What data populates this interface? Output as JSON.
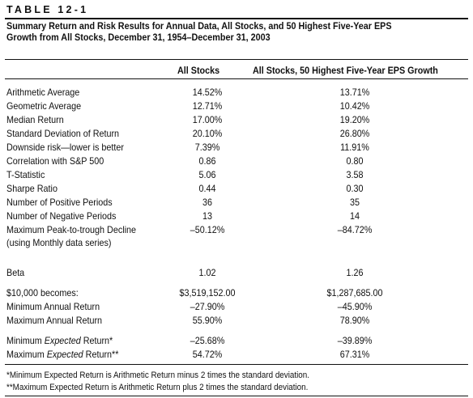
{
  "table_label": "TABLE 12-1",
  "title": {
    "line1": "Summary Return and Risk Results for Annual Data, All Stocks, and 50 Highest Five-Year EPS",
    "line2": "Growth from All Stocks, December 31, 1954–December 31, 2003"
  },
  "columns": {
    "col1": "All Stocks",
    "col2": "All Stocks, 50 Highest Five-Year EPS Growth"
  },
  "rows_main": [
    {
      "label": "Arithmetic Average",
      "v1": "14.52%",
      "v2": "13.71%"
    },
    {
      "label": "Geometric Average",
      "v1": "12.71%",
      "v2": "10.42%"
    },
    {
      "label": "Median Return",
      "v1": "17.00%",
      "v2": "19.20%"
    },
    {
      "label": "Standard Deviation of Return",
      "v1": "20.10%",
      "v2": "26.80%"
    },
    {
      "label": "Downside risk—lower is better",
      "v1": "7.39%",
      "v2": "11.91%"
    },
    {
      "label": "Correlation with S&P 500",
      "v1": "0.86",
      "v2": "0.80"
    },
    {
      "label": "T-Statistic",
      "v1": "5.06",
      "v2": "3.58"
    },
    {
      "label": "Sharpe Ratio",
      "v1": "0.44",
      "v2": "0.30"
    },
    {
      "label": "Number of Positive Periods",
      "v1": "36",
      "v2": "35"
    },
    {
      "label": "Number of Negative Periods",
      "v1": "13",
      "v2": "14"
    }
  ],
  "row_decline": {
    "label": "Maximum Peak-to-trough Decline",
    "sublabel": "(using Monthly data series)",
    "v1": "–50.12%",
    "v2": "–84.72%"
  },
  "row_beta": {
    "label": "Beta",
    "v1": "1.02",
    "v2": "1.26"
  },
  "rows_growth": [
    {
      "label": "$10,000 becomes:",
      "v1": "$3,519,152.00",
      "v2": "$1,287,685.00"
    },
    {
      "label": "Minimum Annual Return",
      "v1": "–27.90%",
      "v2": "–45.90%"
    },
    {
      "label": "Maximum Annual Return",
      "v1": "55.90%",
      "v2": "78.90%"
    }
  ],
  "rows_expected": [
    {
      "label_pre": "Minimum ",
      "label_em": "Expected",
      "label_post": " Return*",
      "v1": "–25.68%",
      "v2": "–39.89%"
    },
    {
      "label_pre": "Maximum ",
      "label_em": "Expected",
      "label_post": " Return**",
      "v1": "54.72%",
      "v2": "67.31%"
    }
  ],
  "footnotes": {
    "f1": "*Minimum Expected Return is Arithmetic Return minus 2 times the standard deviation.",
    "f2": "**Maximum  Expected Return is Arithmetic Return plus 2 times the standard deviation."
  }
}
